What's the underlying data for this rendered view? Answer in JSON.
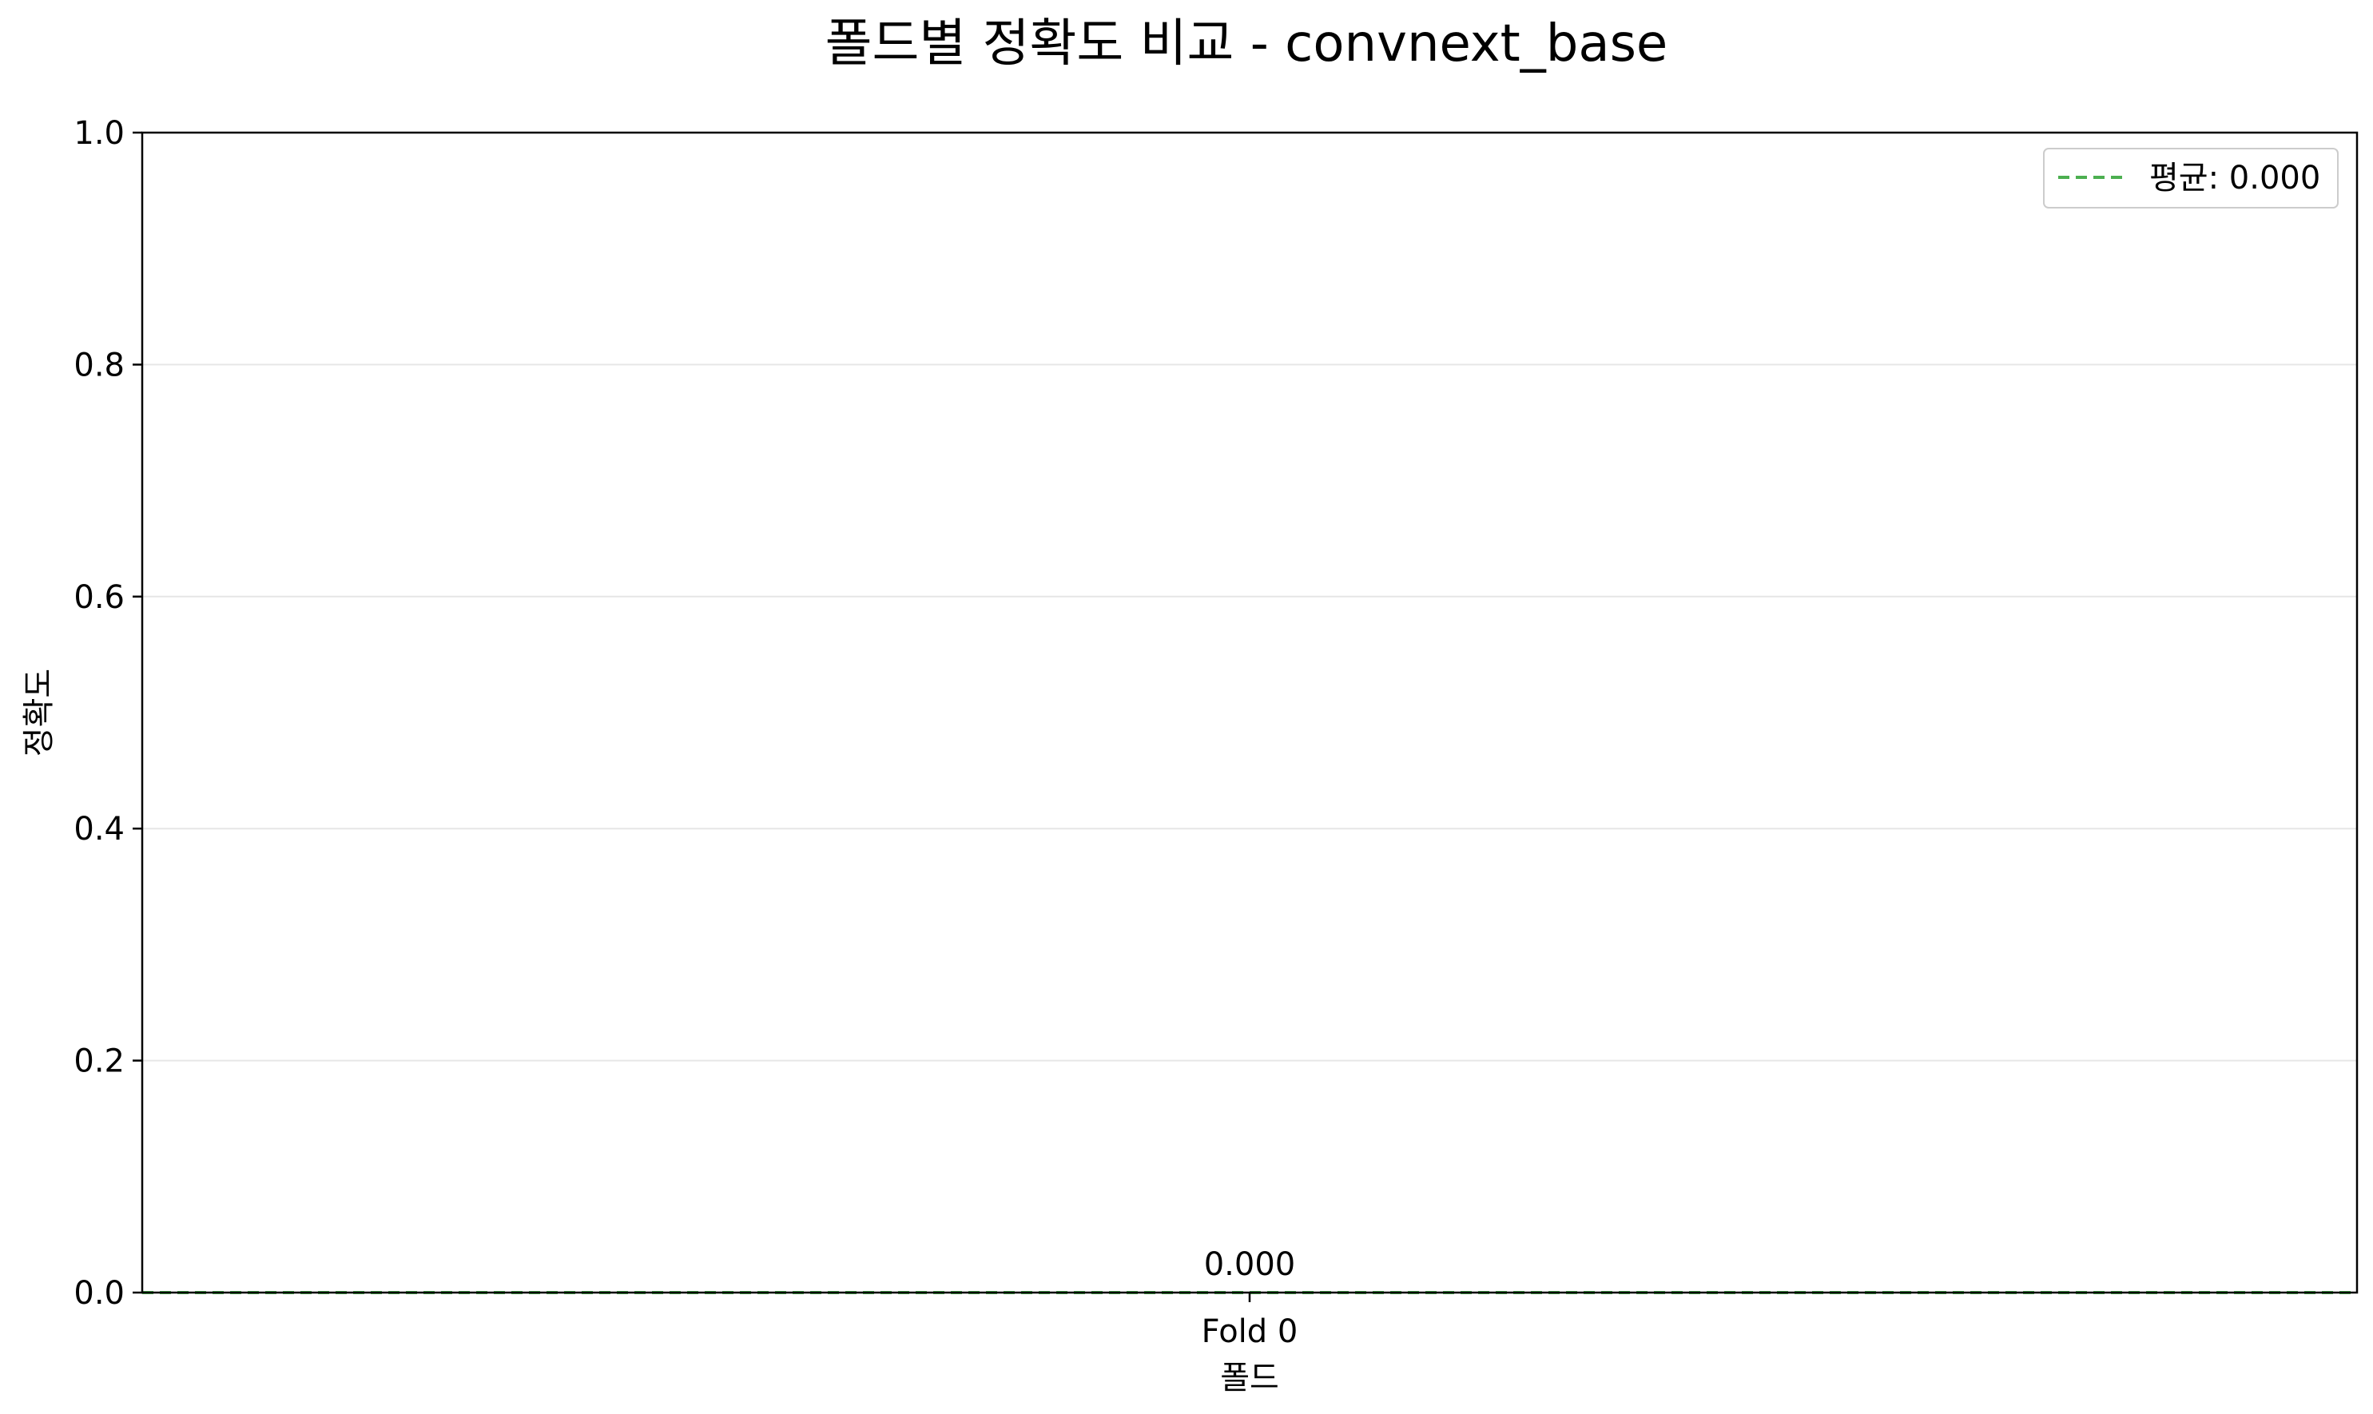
{
  "chart_data": {
    "type": "bar",
    "title": "폴드별 정확도 비교 - convnext_base",
    "xlabel": "폴드",
    "ylabel": "정확도",
    "categories": [
      "Fold 0"
    ],
    "series": [
      {
        "values": [
          0.0
        ]
      }
    ],
    "data_labels": [
      "0.000"
    ],
    "ylim": [
      0.0,
      1.0
    ],
    "yticks": [
      0.0,
      0.2,
      0.4,
      0.6,
      0.8,
      1.0
    ],
    "ytick_labels": [
      "0.0",
      "0.2",
      "0.4",
      "0.6",
      "0.8",
      "1.0"
    ],
    "grid": "y",
    "mean_line": {
      "value": 0.0,
      "label": "평균: 0.000",
      "color": "#4caf50",
      "style": "dashed"
    },
    "legend": {
      "placement": "top-right",
      "entries": [
        "평균: 0.000"
      ]
    },
    "colors": {
      "grid": "#e6e6e6",
      "axes": "#000000",
      "mean": "#4caf50"
    }
  }
}
